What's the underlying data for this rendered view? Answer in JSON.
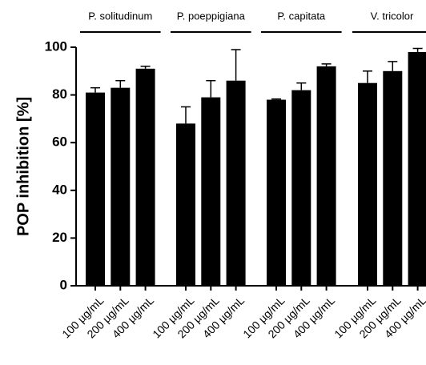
{
  "chart_data": {
    "type": "bar",
    "y_label": "POP inhibition [%]",
    "categories": [
      "100 µg/mL",
      "200 µg/mL",
      "400 µg/mL"
    ],
    "groups": [
      {
        "name": "P. solitudinum",
        "values": [
          81,
          83,
          91
        ],
        "errors": [
          2,
          3,
          1
        ]
      },
      {
        "name": "P. poeppigiana",
        "values": [
          68,
          79,
          86
        ],
        "errors": [
          7,
          7,
          13
        ]
      },
      {
        "name": "P. capitata",
        "values": [
          78,
          82,
          92
        ],
        "errors": [
          0.3,
          3,
          1
        ]
      },
      {
        "name": "V. tricolor",
        "values": [
          85,
          90,
          98
        ],
        "errors": [
          5,
          4,
          1.5
        ]
      }
    ],
    "color": "#000000",
    "ylim": [
      0,
      100
    ],
    "yticks": [
      0,
      20,
      40,
      60,
      80,
      100
    ]
  }
}
